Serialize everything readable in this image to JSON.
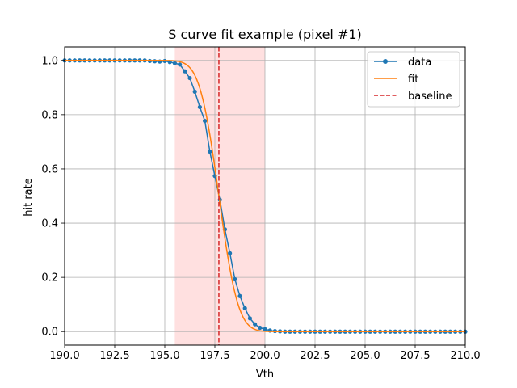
{
  "chart_data": {
    "type": "line",
    "title": "S curve fit example (pixel #1)",
    "xlabel": "Vth",
    "ylabel": "hit rate",
    "xlim": [
      190.0,
      210.0
    ],
    "ylim": [
      -0.05,
      1.05
    ],
    "xticks": [
      190.0,
      192.5,
      195.0,
      197.5,
      200.0,
      202.5,
      205.0,
      207.5,
      210.0
    ],
    "xtick_labels": [
      "190.0",
      "192.5",
      "195.0",
      "197.5",
      "200.0",
      "202.5",
      "205.0",
      "207.5",
      "210.0"
    ],
    "yticks": [
      0.0,
      0.2,
      0.4,
      0.6,
      0.8,
      1.0
    ],
    "ytick_labels": [
      "0.0",
      "0.2",
      "0.4",
      "0.6",
      "0.8",
      "1.0"
    ],
    "grid": true,
    "legend_position": "top-right",
    "highlight_band": {
      "x_start": 195.5,
      "x_end": 200.0,
      "color": "#ffe0e0"
    },
    "baseline_x": 197.7,
    "series": [
      {
        "name": "data",
        "style": "line-marker",
        "color": "#1f77b4",
        "x": [
          190.0,
          190.25,
          190.5,
          190.75,
          191.0,
          191.25,
          191.5,
          191.75,
          192.0,
          192.25,
          192.5,
          192.75,
          193.0,
          193.25,
          193.5,
          193.75,
          194.0,
          194.25,
          194.5,
          194.75,
          195.0,
          195.25,
          195.5,
          195.75,
          196.0,
          196.25,
          196.5,
          196.75,
          197.0,
          197.25,
          197.5,
          197.75,
          198.0,
          198.25,
          198.5,
          198.75,
          199.0,
          199.25,
          199.5,
          199.75,
          200.0,
          200.25,
          200.5,
          200.75,
          201.0,
          201.25,
          201.5,
          201.75,
          202.0,
          202.25,
          202.5,
          202.75,
          203.0,
          203.25,
          203.5,
          203.75,
          204.0,
          204.25,
          204.5,
          204.75,
          205.0,
          205.25,
          205.5,
          205.75,
          206.0,
          206.25,
          206.5,
          206.75,
          207.0,
          207.25,
          207.5,
          207.75,
          208.0,
          208.25,
          208.5,
          208.75,
          209.0,
          209.25,
          209.5,
          209.75,
          210.0
        ],
        "values": [
          1.0,
          1.0,
          1.0,
          1.0,
          1.0,
          1.0,
          1.0,
          1.0,
          1.0,
          1.0,
          1.0,
          1.0,
          1.0,
          1.0,
          1.0,
          1.0,
          1.0,
          0.998,
          0.997,
          0.996,
          0.998,
          0.994,
          0.99,
          0.985,
          0.96,
          0.935,
          0.885,
          0.828,
          0.777,
          0.664,
          0.574,
          0.486,
          0.377,
          0.289,
          0.193,
          0.131,
          0.086,
          0.049,
          0.027,
          0.014,
          0.009,
          0.004,
          0.002,
          0.001,
          0.0,
          0.0,
          0.0,
          0.0,
          0.0,
          0.0,
          0.0,
          0.0,
          0.0,
          0.0,
          0.0,
          0.0,
          0.0,
          0.0,
          0.0,
          0.0,
          0.0,
          0.0,
          0.0,
          0.0,
          0.0,
          0.0,
          0.0,
          0.0,
          0.0,
          0.0,
          0.0,
          0.0,
          0.0,
          0.0,
          0.0,
          0.0,
          0.0,
          0.0,
          0.0,
          0.0,
          0.0
        ]
      },
      {
        "name": "fit",
        "style": "line",
        "color": "#ff7f0e",
        "function": "s_curve",
        "mu": 197.7,
        "sigma": 0.75,
        "x_range": [
          190.0,
          210.0
        ]
      },
      {
        "name": "baseline",
        "style": "dashed-vline",
        "color": "#d62728"
      }
    ]
  }
}
